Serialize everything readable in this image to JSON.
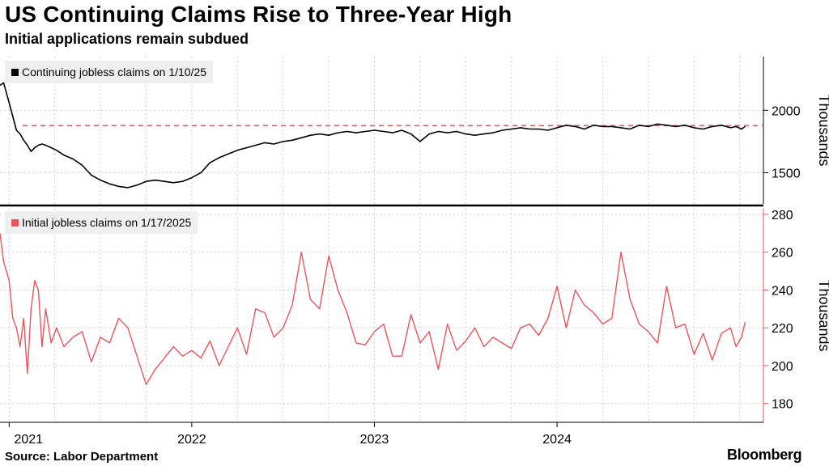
{
  "header": {
    "title": "US Continuing Claims Rise to Three-Year High",
    "subtitle": "Initial applications remain subdued"
  },
  "footer": {
    "source": "Source: Labor Department",
    "brand": "Bloomberg"
  },
  "colors": {
    "continuing": "#000000",
    "initial": "#e8555b",
    "reference": "#e8555b",
    "grid": "#cfcfcf",
    "axis": "#000000"
  },
  "chart_data": [
    {
      "type": "line",
      "title": "Continuing jobless claims on 1/10/25",
      "legend": "Continuing jobless claims on 1/10/25",
      "ylabel": "Thousands",
      "ylim": [
        1250,
        2430
      ],
      "yticks": [
        1500,
        2000
      ],
      "xlim": [
        2020.95,
        2025.13
      ],
      "reference_line": 1877,
      "x": [
        2020.95,
        2020.97,
        2021.0,
        2021.02,
        2021.04,
        2021.06,
        2021.08,
        2021.1,
        2021.12,
        2021.14,
        2021.16,
        2021.18,
        2021.2,
        2021.23,
        2021.26,
        2021.3,
        2021.35,
        2021.4,
        2021.45,
        2021.5,
        2021.55,
        2021.6,
        2021.65,
        2021.7,
        2021.75,
        2021.8,
        2021.85,
        2021.9,
        2021.95,
        2022.0,
        2022.05,
        2022.1,
        2022.15,
        2022.2,
        2022.25,
        2022.3,
        2022.35,
        2022.4,
        2022.45,
        2022.5,
        2022.55,
        2022.6,
        2022.65,
        2022.7,
        2022.75,
        2022.8,
        2022.85,
        2022.9,
        2022.95,
        2023.0,
        2023.05,
        2023.1,
        2023.15,
        2023.2,
        2023.25,
        2023.3,
        2023.35,
        2023.4,
        2023.45,
        2023.5,
        2023.55,
        2023.6,
        2023.65,
        2023.7,
        2023.75,
        2023.8,
        2023.85,
        2023.9,
        2023.95,
        2024.0,
        2024.05,
        2024.1,
        2024.15,
        2024.2,
        2024.25,
        2024.3,
        2024.35,
        2024.4,
        2024.45,
        2024.5,
        2024.55,
        2024.6,
        2024.65,
        2024.7,
        2024.75,
        2024.8,
        2024.85,
        2024.9,
        2024.95,
        2024.98,
        2025.01,
        2025.03
      ],
      "values": [
        2200,
        2220,
        2060,
        1950,
        1840,
        1810,
        1760,
        1720,
        1670,
        1700,
        1720,
        1730,
        1720,
        1700,
        1680,
        1640,
        1610,
        1560,
        1480,
        1440,
        1410,
        1390,
        1380,
        1400,
        1430,
        1440,
        1430,
        1420,
        1430,
        1460,
        1500,
        1580,
        1620,
        1650,
        1680,
        1700,
        1720,
        1740,
        1730,
        1750,
        1760,
        1780,
        1800,
        1810,
        1800,
        1820,
        1830,
        1820,
        1830,
        1840,
        1830,
        1820,
        1840,
        1810,
        1750,
        1810,
        1830,
        1820,
        1830,
        1810,
        1800,
        1810,
        1820,
        1840,
        1850,
        1860,
        1850,
        1850,
        1840,
        1860,
        1880,
        1870,
        1850,
        1880,
        1870,
        1870,
        1860,
        1850,
        1880,
        1870,
        1890,
        1880,
        1870,
        1880,
        1860,
        1850,
        1870,
        1880,
        1860,
        1870,
        1850,
        1870
      ]
    },
    {
      "type": "line",
      "title": "Initial jobless claims on 1/17/2025",
      "legend": "Initial jobless claims on 1/17/2025",
      "ylabel": "Thousands",
      "ylim": [
        170,
        283
      ],
      "yticks": [
        180,
        200,
        220,
        240,
        260,
        280
      ],
      "xlim": [
        2020.95,
        2025.13
      ],
      "x": [
        2020.95,
        2020.97,
        2021.0,
        2021.02,
        2021.04,
        2021.06,
        2021.08,
        2021.1,
        2021.12,
        2021.14,
        2021.16,
        2021.18,
        2021.2,
        2021.23,
        2021.26,
        2021.3,
        2021.35,
        2021.4,
        2021.45,
        2021.5,
        2021.55,
        2021.6,
        2021.65,
        2021.7,
        2021.75,
        2021.8,
        2021.85,
        2021.9,
        2021.95,
        2022.0,
        2022.05,
        2022.1,
        2022.15,
        2022.2,
        2022.25,
        2022.3,
        2022.35,
        2022.4,
        2022.45,
        2022.5,
        2022.55,
        2022.6,
        2022.65,
        2022.7,
        2022.75,
        2022.8,
        2022.85,
        2022.9,
        2022.95,
        2023.0,
        2023.05,
        2023.1,
        2023.15,
        2023.2,
        2023.25,
        2023.3,
        2023.35,
        2023.4,
        2023.45,
        2023.5,
        2023.55,
        2023.6,
        2023.65,
        2023.7,
        2023.75,
        2023.8,
        2023.85,
        2023.9,
        2023.95,
        2024.0,
        2024.05,
        2024.1,
        2024.15,
        2024.2,
        2024.25,
        2024.3,
        2024.35,
        2024.4,
        2024.45,
        2024.5,
        2024.55,
        2024.6,
        2024.65,
        2024.7,
        2024.75,
        2024.8,
        2024.85,
        2024.9,
        2024.95,
        2024.98,
        2025.01,
        2025.03
      ],
      "values": [
        270,
        255,
        245,
        225,
        220,
        210,
        225,
        196,
        230,
        245,
        240,
        210,
        230,
        212,
        220,
        210,
        215,
        218,
        202,
        215,
        212,
        225,
        220,
        205,
        190,
        198,
        204,
        210,
        205,
        208,
        204,
        213,
        200,
        210,
        220,
        206,
        230,
        228,
        215,
        220,
        232,
        260,
        235,
        230,
        258,
        240,
        228,
        212,
        211,
        218,
        222,
        205,
        205,
        227,
        212,
        218,
        198,
        222,
        208,
        213,
        220,
        210,
        215,
        212,
        209,
        220,
        222,
        216,
        225,
        242,
        220,
        240,
        232,
        228,
        222,
        225,
        260,
        235,
        222,
        218,
        212,
        242,
        220,
        222,
        206,
        217,
        203,
        217,
        220,
        210,
        215,
        223
      ]
    }
  ],
  "x_axis": {
    "ticks": [
      {
        "label": "2021",
        "value": 2021.0
      },
      {
        "label": "2022",
        "value": 2022.0
      },
      {
        "label": "2023",
        "value": 2023.0
      },
      {
        "label": "2024",
        "value": 2024.0
      }
    ]
  }
}
